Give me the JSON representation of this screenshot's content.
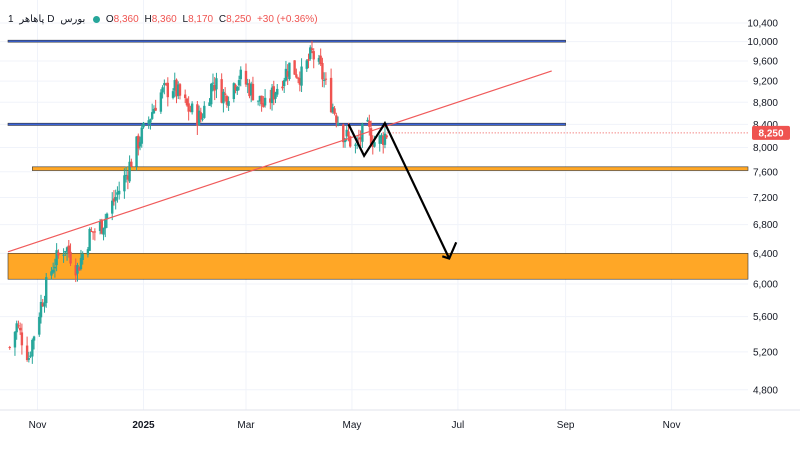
{
  "legend": {
    "interval": "1",
    "symbol": "پاهاهر",
    "timeframe": "D",
    "exchange": "بورس",
    "open_label": "O",
    "open_value": "8,360",
    "high_label": "H",
    "high_value": "8,360",
    "low_label": "L",
    "low_value": "8,170",
    "close_label": "C",
    "close_value": "8,250",
    "change": "+30 (+0.36%)"
  },
  "price_tag": "8,250",
  "colors": {
    "up": "#26a69a",
    "down": "#ef5350",
    "blue_zone": "#3a63d8",
    "orange_zone": "#ffa726",
    "trendline": "#f05a5a",
    "projection": "#000000",
    "price_tag_bg": "#ef5350"
  },
  "chart_data": {
    "type": "candlestick",
    "y_scale": "log",
    "ylim": [
      4600,
      10400
    ],
    "y_ticks": [
      10400,
      10000,
      9600,
      9200,
      8800,
      8400,
      8000,
      7600,
      7200,
      6800,
      6400,
      6000,
      5600,
      5200,
      4800
    ],
    "y_tick_labels": [
      "10,400",
      "10,000",
      "9,600",
      "9,200",
      "8,800",
      "8,400",
      "8,000",
      "7,600",
      "7,200",
      "6,800",
      "6,400",
      "6,000",
      "5,600",
      "5,200",
      "4,800"
    ],
    "x_range": [
      "2024-10-15",
      "2025-12-15"
    ],
    "x_ticks": [
      {
        "date": "2024-11-01",
        "label": "Nov"
      },
      {
        "date": "2025-01-01",
        "label": "2025"
      },
      {
        "date": "2025-03-01",
        "label": "Mar"
      },
      {
        "date": "2025-05-01",
        "label": "May"
      },
      {
        "date": "2025-07-01",
        "label": "Jul"
      },
      {
        "date": "2025-09-01",
        "label": "Sep"
      },
      {
        "date": "2025-11-01",
        "label": "Nov"
      }
    ],
    "last_close": 8250,
    "keypoints": [
      {
        "date": "2024-10-16",
        "close": 5250
      },
      {
        "date": "2024-10-20",
        "close": 5500
      },
      {
        "date": "2024-10-27",
        "close": 5150
      },
      {
        "date": "2024-11-03",
        "close": 5750
      },
      {
        "date": "2024-11-10",
        "close": 6250
      },
      {
        "date": "2024-11-17",
        "close": 6500
      },
      {
        "date": "2024-11-24",
        "close": 6200
      },
      {
        "date": "2024-12-01",
        "close": 6650
      },
      {
        "date": "2024-12-08",
        "close": 6800
      },
      {
        "date": "2024-12-15",
        "close": 7150
      },
      {
        "date": "2024-12-22",
        "close": 7550
      },
      {
        "date": "2024-12-29",
        "close": 8100
      },
      {
        "date": "2025-01-03",
        "close": 8400
      },
      {
        "date": "2025-01-10",
        "close": 8950
      },
      {
        "date": "2025-01-18",
        "close": 9100
      },
      {
        "date": "2025-01-26",
        "close": 8700
      },
      {
        "date": "2025-02-03",
        "close": 8500
      },
      {
        "date": "2025-02-10",
        "close": 9200
      },
      {
        "date": "2025-02-17",
        "close": 8900
      },
      {
        "date": "2025-02-25",
        "close": 9300
      },
      {
        "date": "2025-03-05",
        "close": 9000
      },
      {
        "date": "2025-03-12",
        "close": 8700
      },
      {
        "date": "2025-03-19",
        "close": 9100
      },
      {
        "date": "2025-03-26",
        "close": 9500
      },
      {
        "date": "2025-04-02",
        "close": 9300
      },
      {
        "date": "2025-04-08",
        "close": 9750
      },
      {
        "date": "2025-04-13",
        "close": 9400
      },
      {
        "date": "2025-04-19",
        "close": 8800
      },
      {
        "date": "2025-04-26",
        "close": 8250
      },
      {
        "date": "2025-05-03",
        "close": 8000
      },
      {
        "date": "2025-05-09",
        "close": 8350
      },
      {
        "date": "2025-05-15",
        "close": 8050
      },
      {
        "date": "2025-05-21",
        "close": 8250
      }
    ],
    "zones": [
      {
        "name": "blue-zone-top",
        "color": "blue",
        "from": 9990,
        "to": 10030,
        "start": "2024-10-15",
        "end": "2025-09-01"
      },
      {
        "name": "blue-zone-mid",
        "color": "blue",
        "from": 8380,
        "to": 8420,
        "start": "2024-10-15",
        "end": "2025-09-01"
      },
      {
        "name": "orange-zone-small",
        "color": "orange",
        "from": 7620,
        "to": 7680,
        "start": "2024-10-29",
        "end": "2025-12-15"
      },
      {
        "name": "orange-zone-large",
        "color": "orange",
        "from": 6060,
        "to": 6400,
        "start": "2024-10-15",
        "end": "2025-12-15"
      }
    ],
    "trendline": [
      {
        "date": "2024-10-15",
        "price": 6420
      },
      {
        "date": "2025-08-24",
        "price": 9400
      }
    ],
    "projection_path": [
      {
        "date": "2025-04-29",
        "price": 8400
      },
      {
        "date": "2025-05-08",
        "price": 7860
      },
      {
        "date": "2025-05-20",
        "price": 8420
      },
      {
        "date": "2025-06-26",
        "price": 6330
      }
    ],
    "projection_arrowhead": [
      {
        "date": "2025-06-22",
        "price": 6360
      },
      {
        "date": "2025-06-26",
        "price": 6330
      },
      {
        "date": "2025-06-30",
        "price": 6550
      }
    ]
  }
}
